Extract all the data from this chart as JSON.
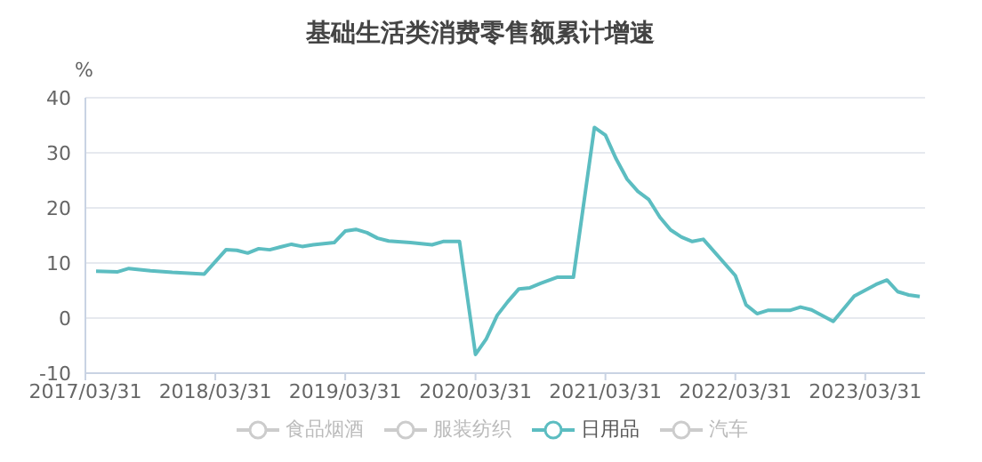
{
  "chart_data": {
    "type": "line",
    "title": "基础生活类消费零售额累计增速",
    "ylabel": "%",
    "x": [
      "2017-04-30",
      "2017-06-30",
      "2017-07-31",
      "2017-09-30",
      "2017-11-30",
      "2018-02-28",
      "2018-04-30",
      "2018-05-31",
      "2018-06-30",
      "2018-07-31",
      "2018-08-31",
      "2018-09-30",
      "2018-10-31",
      "2018-11-30",
      "2018-12-31",
      "2019-02-28",
      "2019-03-31",
      "2019-04-30",
      "2019-05-31",
      "2019-06-30",
      "2019-07-31",
      "2019-09-30",
      "2019-11-30",
      "2019-12-31",
      "2020-02-15",
      "2020-03-31",
      "2020-04-30",
      "2020-05-31",
      "2020-06-30",
      "2020-07-31",
      "2020-08-31",
      "2020-09-30",
      "2020-11-15",
      "2020-12-31",
      "2021-02-28",
      "2021-03-31",
      "2021-04-30",
      "2021-05-31",
      "2021-06-30",
      "2021-07-31",
      "2021-08-31",
      "2021-09-30",
      "2021-10-31",
      "2021-11-30",
      "2021-12-31",
      "2022-03-31",
      "2022-04-30",
      "2022-05-31",
      "2022-06-30",
      "2022-08-31",
      "2022-09-30",
      "2022-10-31",
      "2022-12-31",
      "2023-02-28",
      "2023-04-30",
      "2023-05-31",
      "2023-06-30",
      "2023-07-31",
      "2023-08-31"
    ],
    "series": [
      {
        "name": "食品烟酒",
        "color": "#cccccc",
        "values": [
          null,
          null,
          null,
          null,
          null,
          null,
          null,
          null,
          null,
          null,
          null,
          null,
          null,
          null,
          null,
          null,
          null,
          null,
          null,
          null,
          null,
          null,
          null,
          null,
          null,
          null,
          null,
          null,
          null,
          null,
          null,
          null,
          null,
          null,
          null,
          null,
          null,
          null,
          null,
          null,
          null,
          null,
          null,
          null,
          null,
          null,
          null,
          null,
          null,
          null,
          null,
          null,
          null,
          null,
          null,
          null,
          null,
          null,
          null
        ]
      },
      {
        "name": "服装纺织",
        "color": "#cccccc",
        "values": [
          null,
          null,
          null,
          null,
          null,
          null,
          null,
          null,
          null,
          null,
          null,
          null,
          null,
          null,
          null,
          null,
          null,
          null,
          null,
          null,
          null,
          null,
          null,
          null,
          null,
          null,
          null,
          null,
          null,
          null,
          null,
          null,
          null,
          null,
          null,
          null,
          null,
          null,
          null,
          null,
          null,
          null,
          null,
          null,
          null,
          null,
          null,
          null,
          null,
          null,
          null,
          null,
          null,
          null,
          null,
          null,
          null,
          null,
          null
        ]
      },
      {
        "name": "日用品",
        "color": "#5cbdc1",
        "values": [
          8.5,
          8.4,
          9.0,
          8.6,
          8.3,
          8.0,
          12.4,
          12.3,
          11.8,
          12.6,
          12.4,
          12.9,
          13.4,
          13.0,
          13.3,
          13.7,
          15.8,
          16.1,
          15.5,
          14.5,
          14.0,
          13.7,
          13.3,
          13.9,
          13.9,
          -6.6,
          -3.8,
          0.5,
          3.0,
          5.3,
          5.5,
          6.3,
          7.4,
          7.4,
          34.6,
          33.2,
          28.9,
          25.2,
          23.0,
          21.5,
          18.3,
          16.0,
          14.7,
          13.9,
          14.3,
          7.7,
          2.4,
          0.8,
          1.4,
          1.4,
          2.0,
          1.5,
          -0.6,
          4.0,
          6.1,
          6.9,
          4.8,
          4.2,
          3.9
        ]
      },
      {
        "name": "汽车",
        "color": "#cccccc",
        "values": [
          null,
          null,
          null,
          null,
          null,
          null,
          null,
          null,
          null,
          null,
          null,
          null,
          null,
          null,
          null,
          null,
          null,
          null,
          null,
          null,
          null,
          null,
          null,
          null,
          null,
          null,
          null,
          null,
          null,
          null,
          null,
          null,
          null,
          null,
          null,
          null,
          null,
          null,
          null,
          null,
          null,
          null,
          null,
          null,
          null,
          null,
          null,
          null,
          null,
          null,
          null,
          null,
          null,
          null,
          null,
          null,
          null,
          null,
          null
        ]
      }
    ],
    "xlim": [
      "2017-03-31",
      "2023-09-15"
    ],
    "xticks": [
      {
        "value": "2017-03-31",
        "label": "2017/03/31"
      },
      {
        "value": "2018-03-31",
        "label": "2018/03/31"
      },
      {
        "value": "2019-03-31",
        "label": "2019/03/31"
      },
      {
        "value": "2020-03-31",
        "label": "2020/03/31"
      },
      {
        "value": "2021-03-31",
        "label": "2021/03/31"
      },
      {
        "value": "2022-03-31",
        "label": "2022/03/31"
      },
      {
        "value": "2023-03-31",
        "label": "2023/03/31"
      }
    ],
    "ylim": [
      -10,
      40
    ],
    "yticks": [
      -10,
      0,
      10,
      20,
      30,
      40
    ],
    "grid": "y",
    "legend": "bottom",
    "marker": "none",
    "line_style": "solid"
  }
}
